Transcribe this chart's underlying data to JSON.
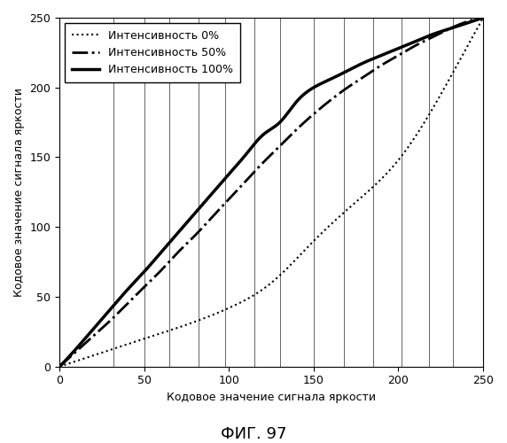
{
  "title": "ФИГ. 97",
  "xlabel": "Кодовое значение сигнала яркости",
  "ylabel": "Кодовое значение сигнала яркости",
  "xlim": [
    0,
    250
  ],
  "ylim": [
    0,
    250
  ],
  "xticks": [
    0,
    50,
    100,
    150,
    200,
    250
  ],
  "yticks": [
    0,
    50,
    100,
    150,
    200,
    250
  ],
  "legend_entries": [
    {
      "label": "Интенсивность 0%",
      "linestyle": "dotted",
      "linewidth": 1.5,
      "color": "#000000"
    },
    {
      "label": "Интенсивность 50%",
      "linestyle": "dashdot",
      "linewidth": 2.0,
      "color": "#000000"
    },
    {
      "label": "Интенсивность 100%",
      "linestyle": "solid",
      "linewidth": 2.5,
      "color": "#000000"
    }
  ],
  "vertical_lines_x": [
    32,
    50,
    65,
    82,
    98,
    115,
    130,
    150,
    168,
    185,
    202,
    218,
    232
  ],
  "curve_100_points": [
    [
      0,
      0
    ],
    [
      10,
      13
    ],
    [
      20,
      27
    ],
    [
      30,
      41
    ],
    [
      40,
      55
    ],
    [
      50,
      68
    ],
    [
      60,
      82
    ],
    [
      70,
      96
    ],
    [
      80,
      110
    ],
    [
      90,
      124
    ],
    [
      100,
      138
    ],
    [
      110,
      152
    ],
    [
      120,
      166
    ],
    [
      130,
      175
    ],
    [
      140,
      190
    ],
    [
      150,
      200
    ],
    [
      160,
      206
    ],
    [
      170,
      212
    ],
    [
      180,
      218
    ],
    [
      190,
      223
    ],
    [
      200,
      228
    ],
    [
      210,
      233
    ],
    [
      220,
      238
    ],
    [
      230,
      242
    ],
    [
      240,
      246
    ],
    [
      250,
      250
    ]
  ],
  "curve_50_points": [
    [
      0,
      0
    ],
    [
      10,
      11
    ],
    [
      20,
      22
    ],
    [
      30,
      33
    ],
    [
      40,
      45
    ],
    [
      50,
      57
    ],
    [
      60,
      69
    ],
    [
      70,
      82
    ],
    [
      80,
      94
    ],
    [
      90,
      107
    ],
    [
      100,
      120
    ],
    [
      110,
      133
    ],
    [
      120,
      146
    ],
    [
      130,
      158
    ],
    [
      140,
      170
    ],
    [
      150,
      181
    ],
    [
      160,
      191
    ],
    [
      170,
      200
    ],
    [
      180,
      208
    ],
    [
      190,
      216
    ],
    [
      200,
      223
    ],
    [
      210,
      230
    ],
    [
      220,
      236
    ],
    [
      230,
      242
    ],
    [
      240,
      247
    ],
    [
      250,
      250
    ]
  ],
  "curve_0_points": [
    [
      0,
      0
    ],
    [
      25,
      10
    ],
    [
      50,
      20
    ],
    [
      75,
      30
    ],
    [
      100,
      42
    ],
    [
      125,
      60
    ],
    [
      150,
      90
    ],
    [
      175,
      118
    ],
    [
      200,
      148
    ],
    [
      225,
      195
    ],
    [
      250,
      250
    ]
  ],
  "background_color": "#ffffff",
  "font_size_title": 13,
  "font_size_labels": 9,
  "font_size_ticks": 9,
  "font_size_legend": 9
}
